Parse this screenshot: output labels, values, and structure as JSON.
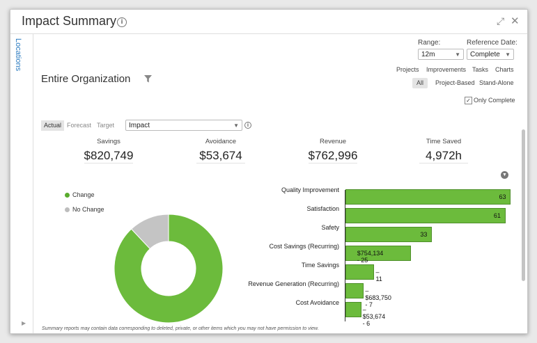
{
  "window": {
    "title": "Impact Summary"
  },
  "sidebar": {
    "label": "Locations"
  },
  "controls": {
    "range_label": "Range:",
    "range_value": "12m",
    "reference_label": "Reference Date:",
    "reference_value": "Complete"
  },
  "org_title": "Entire Organization",
  "views": [
    "Projects",
    "Improvements",
    "Tasks",
    "Charts"
  ],
  "segments": [
    "All",
    "Project-Based",
    "Stand-Alone"
  ],
  "only_complete": {
    "label": "Only Complete",
    "checked": true
  },
  "tabs": [
    "Actual",
    "Forecast",
    "Target"
  ],
  "impact_select": "Impact",
  "metrics": [
    {
      "label": "Savings",
      "value": "$820,749"
    },
    {
      "label": "Avoidance",
      "value": "$53,674"
    },
    {
      "label": "Revenue",
      "value": "$762,996"
    },
    {
      "label": "Time Saved",
      "value": "4,972h"
    }
  ],
  "legend": [
    {
      "label": "Change",
      "color": "#5aac2e"
    },
    {
      "label": "No Change",
      "color": "#bdbdbd"
    }
  ],
  "chart_data": [
    {
      "type": "pie",
      "labels": [
        "Change",
        "No Change"
      ],
      "values": [
        88,
        12
      ],
      "colors": [
        "#6cbb3c",
        "#c4c4c4"
      ]
    },
    {
      "type": "bar",
      "orientation": "horizontal",
      "categories": [
        "Quality Improvement",
        "Satisfaction",
        "Safety",
        "Cost Savings (Recurring)",
        "Time Savings",
        "Revenue Generation (Recurring)",
        "Cost Avoidance"
      ],
      "values": [
        63,
        61,
        33,
        25,
        11,
        7,
        6
      ],
      "labels": [
        "63",
        "61",
        "33",
        "$754,134 - 25",
        "11",
        "$683,750 - 7",
        "$53,674 - 6"
      ],
      "xlim": [
        0,
        65
      ]
    }
  ],
  "footer": "Summary reports may contain data corresponding to deleted, private, or other items which you may not have permission to view."
}
